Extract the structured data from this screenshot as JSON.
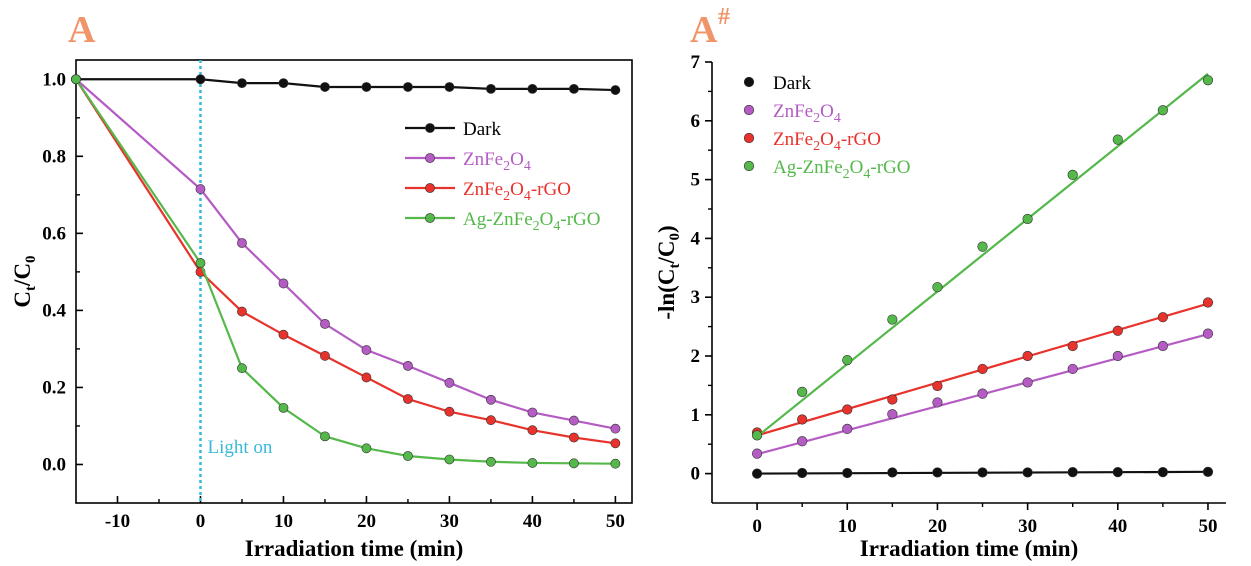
{
  "colors": {
    "dark": "#111111",
    "znfe2o4": "#b45cc4",
    "znfe2o4_rgo": "#e8322c",
    "ag_znfe2o4_rgo": "#54b84a",
    "light_line": "#38b9d8",
    "panel_letter": "#f0956a"
  },
  "chart_data": [
    {
      "type": "line",
      "panel": "A",
      "panel_sup": "",
      "xlabel": "Irradiation time (min)",
      "ylabel": "C",
      "ylabel_sub1": "t",
      "ylabel_mid": "/C",
      "ylabel_sub2": "0",
      "xlim": [
        -15,
        52
      ],
      "ylim": [
        -0.1,
        1.05
      ],
      "xticks": [
        -10,
        0,
        10,
        20,
        30,
        40,
        50
      ],
      "yticks": [
        0.0,
        0.2,
        0.4,
        0.6,
        0.8,
        1.0
      ],
      "x": [
        -15,
        0,
        5,
        10,
        15,
        20,
        25,
        30,
        35,
        40,
        45,
        50
      ],
      "series": [
        {
          "key": "dark",
          "name": "Dark",
          "name_sub_html": "Dark",
          "values": [
            1.0,
            1.0,
            0.99,
            0.99,
            0.98,
            0.98,
            0.98,
            0.98,
            0.975,
            0.975,
            0.975,
            0.972
          ]
        },
        {
          "key": "znfe2o4",
          "name": "ZnFe2O4",
          "name_sub_html": "ZnFe<sub>2</sub>O<sub>4</sub>",
          "values": [
            1.0,
            0.715,
            0.575,
            0.47,
            0.365,
            0.297,
            0.256,
            0.212,
            0.168,
            0.135,
            0.114,
            0.093
          ]
        },
        {
          "key": "znfe2o4_rgo",
          "name": "ZnFe2O4-rGO",
          "name_sub_html": "ZnFe<sub>2</sub>O<sub>4</sub>-rGO",
          "values": [
            1.0,
            0.5,
            0.397,
            0.337,
            0.282,
            0.226,
            0.17,
            0.137,
            0.115,
            0.089,
            0.07,
            0.055
          ]
        },
        {
          "key": "ag_znfe2o4_rgo",
          "name": "Ag-ZnFe2O4-rGO",
          "name_sub_html": "Ag-ZnFe<sub>2</sub>O<sub>4</sub>-rGO",
          "values": [
            1.0,
            0.523,
            0.25,
            0.147,
            0.073,
            0.042,
            0.022,
            0.013,
            0.007,
            0.004,
            0.003,
            0.002
          ]
        }
      ],
      "annotation": {
        "x": 0,
        "label": "Light on"
      },
      "legend_position": "right-middle"
    },
    {
      "type": "scatter",
      "panel": "A",
      "panel_sup": "#",
      "xlabel": "Irradiation time (min)",
      "ylabel": "-ln(C",
      "ylabel_sub1": "t",
      "ylabel_mid": "/C",
      "ylabel_sub2": "0",
      "ylabel_end": ")",
      "xlim": [
        -5,
        52
      ],
      "ylim": [
        -0.5,
        7.0
      ],
      "xticks": [
        0,
        10,
        20,
        30,
        40,
        50
      ],
      "yticks": [
        0,
        1,
        2,
        3,
        4,
        5,
        6,
        7
      ],
      "x": [
        0,
        5,
        10,
        15,
        20,
        25,
        30,
        35,
        40,
        45,
        50
      ],
      "series": [
        {
          "key": "dark",
          "name": "Dark",
          "name_sub_html": "Dark",
          "values": [
            0.0,
            0.01,
            0.01,
            0.02,
            0.02,
            0.02,
            0.02,
            0.025,
            0.025,
            0.025,
            0.03
          ],
          "fit": [
            0.0,
            0.03
          ]
        },
        {
          "key": "znfe2o4",
          "name": "ZnFe2O4",
          "name_sub_html": "ZnFe<sub>2</sub>O<sub>4</sub>",
          "values": [
            0.34,
            0.55,
            0.76,
            1.01,
            1.21,
            1.36,
            1.55,
            1.78,
            2.0,
            2.17,
            2.38
          ],
          "fit": [
            0.33,
            2.37
          ]
        },
        {
          "key": "znfe2o4_rgo",
          "name": "ZnFe2O4-rGO",
          "name_sub_html": "ZnFe<sub>2</sub>O<sub>4</sub>-rGO",
          "values": [
            0.7,
            0.92,
            1.09,
            1.26,
            1.49,
            1.78,
            2.0,
            2.17,
            2.43,
            2.66,
            2.91
          ],
          "fit": [
            0.65,
            2.89
          ]
        },
        {
          "key": "ag_znfe2o4_rgo",
          "name": "Ag-ZnFe2O4-rGO",
          "name_sub_html": "Ag-ZnFe<sub>2</sub>O<sub>4</sub>-rGO",
          "values": [
            0.65,
            1.39,
            1.93,
            2.62,
            3.17,
            3.86,
            4.33,
            5.08,
            5.68,
            6.18,
            6.69
          ],
          "fit": [
            0.63,
            6.8
          ]
        }
      ],
      "legend_position": "top-left"
    }
  ]
}
